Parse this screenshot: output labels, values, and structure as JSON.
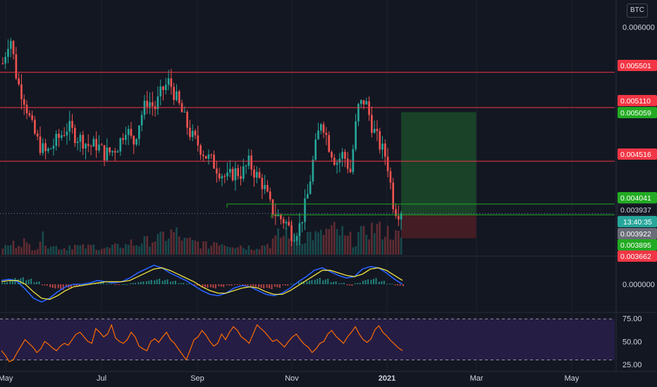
{
  "currency": "BTC",
  "colors": {
    "background": "#131722",
    "up": "#26a69a",
    "down": "#ef5350",
    "level_line": "#f23645",
    "green_line": "#22ab22",
    "blue": "#2962ff",
    "signal": "#f0e442",
    "rsi": "#ff6d00",
    "rsi_band": "#2a1f4a",
    "target_zone": "#1b4a2a",
    "stop_zone": "#4a1e25"
  },
  "chart_data": {
    "type": "candlestick",
    "x_ticks": [
      "May",
      "Jul",
      "Sep",
      "Nov",
      "2021",
      "Mar",
      "May"
    ],
    "price_axis": {
      "ticks": [
        {
          "value": 0.006,
          "label": "0.006000"
        }
      ],
      "ylim": [
        0.00348,
        0.00613
      ]
    },
    "levels": [
      {
        "value": 0.005501,
        "label": "0.005501",
        "kind": "resistance"
      },
      {
        "value": 0.00511,
        "label": "0.005110",
        "kind": "resistance"
      },
      {
        "value": 0.004516,
        "label": "0.004516",
        "kind": "resistance"
      },
      {
        "value": 0.004041,
        "label": "0.004041",
        "kind": "support"
      },
      {
        "value": 0.003922,
        "label": "0.003922",
        "kind": "support"
      }
    ],
    "price_tags": [
      {
        "label": "0.005501",
        "kind": "red"
      },
      {
        "label": "0.005110",
        "kind": "red"
      },
      {
        "label": "0.005059",
        "kind": "green"
      },
      {
        "label": "0.004516",
        "kind": "red"
      },
      {
        "label": "0.004041",
        "kind": "green"
      },
      {
        "label": "0.003937",
        "kind": "dark"
      },
      {
        "label": "13:40:35",
        "kind": "teal"
      },
      {
        "label": "0.003922",
        "kind": "gray"
      },
      {
        "label": "0.003895",
        "kind": "green"
      },
      {
        "label": "0.003662",
        "kind": "red-partial"
      }
    ],
    "last_price": 0.003937,
    "position": {
      "entry": 0.003922,
      "target": 0.005059,
      "stop": 0.003662,
      "take_profit_label": "0.005059",
      "stop_label": "0.003662"
    },
    "price_path": [
      0.0056,
      0.00592,
      0.0054,
      0.0052,
      0.0049,
      0.0047,
      0.0046,
      0.0047,
      0.0048,
      0.0049,
      0.0048,
      0.00475,
      0.00468,
      0.0047,
      0.0046,
      0.00462,
      0.0047,
      0.0049,
      0.0047,
      0.005,
      0.0052,
      0.0051,
      0.0053,
      0.0054,
      0.0052,
      0.005,
      0.0048,
      0.0047,
      0.00458,
      0.0045,
      0.0044,
      0.00432,
      0.0044,
      0.00438,
      0.0045,
      0.00436,
      0.00425,
      0.004,
      0.0039,
      0.00385,
      0.0037,
      0.0038,
      0.0041,
      0.0046,
      0.005,
      0.0047,
      0.0045,
      0.0046,
      0.0044,
      0.0051,
      0.0052,
      0.0049,
      0.0047,
      0.00455,
      0.004,
      0.003937
    ],
    "macd": {
      "axis_label": "0.000000",
      "histogram": [
        0.3,
        0.9,
        1.0,
        0.8,
        0.4,
        -0.2,
        -0.6,
        -0.8,
        -0.6,
        -0.3,
        0.0,
        0.2,
        0.3,
        0.1,
        -0.1,
        0.0,
        0.2,
        0.4,
        0.6,
        0.8,
        0.7,
        0.5,
        0.2,
        0.1,
        -0.2,
        -0.5,
        -0.6,
        -0.4,
        -0.2,
        -0.1,
        -0.2,
        -0.4,
        -0.6,
        -0.7,
        -0.5,
        -0.2,
        0.1,
        0.4,
        0.6,
        0.9,
        0.8,
        0.4,
        0.2,
        -0.2,
        0.2,
        0.7,
        0.9,
        0.5,
        0.1,
        -0.2,
        -0.4
      ],
      "macd_line": [
        0.3,
        0.4,
        0.2,
        -0.4,
        -1.1,
        -1.4,
        -1.1,
        -0.6,
        -0.2,
        0.0,
        0.0,
        0.1,
        0.3,
        0.2,
        0.1,
        0.2,
        0.5,
        0.9,
        1.2,
        1.5,
        1.3,
        0.9,
        0.6,
        0.3,
        -0.1,
        -0.5,
        -0.8,
        -0.9,
        -0.7,
        -0.3,
        -0.1,
        -0.2,
        -0.5,
        -0.8,
        -0.9,
        -0.7,
        -0.3,
        0.2,
        0.6,
        1.1,
        1.3,
        1.0,
        0.7,
        0.5,
        0.6,
        1.2,
        1.4,
        1.3,
        0.9,
        0.4,
        0.0
      ],
      "signal_line": [
        0.2,
        0.3,
        0.3,
        0.0,
        -0.6,
        -1.1,
        -1.2,
        -0.9,
        -0.5,
        -0.2,
        -0.1,
        0.0,
        0.1,
        0.2,
        0.2,
        0.2,
        0.3,
        0.6,
        0.9,
        1.2,
        1.3,
        1.1,
        0.8,
        0.5,
        0.2,
        -0.2,
        -0.5,
        -0.7,
        -0.7,
        -0.5,
        -0.3,
        -0.2,
        -0.3,
        -0.6,
        -0.8,
        -0.8,
        -0.5,
        -0.1,
        0.3,
        0.7,
        1.1,
        1.1,
        0.9,
        0.7,
        0.6,
        0.8,
        1.2,
        1.3,
        1.1,
        0.7,
        0.3
      ]
    },
    "rsi": {
      "ticks": [
        {
          "value": 75,
          "label": "75.00"
        },
        {
          "value": 50,
          "label": "50.00"
        },
        {
          "value": 25,
          "label": "25.00"
        }
      ],
      "ylim": [
        22,
        80
      ],
      "band": [
        30,
        70
      ],
      "values": [
        40,
        35,
        28,
        30,
        38,
        45,
        52,
        48,
        44,
        38,
        42,
        50,
        47,
        43,
        40,
        45,
        48,
        46,
        52,
        58,
        60,
        55,
        50,
        48,
        64,
        60,
        55,
        58,
        68,
        54,
        50,
        48,
        52,
        60,
        55,
        45,
        42,
        40,
        50,
        53,
        49,
        55,
        60,
        52,
        48,
        42,
        36,
        30,
        41,
        52,
        55,
        62,
        57,
        50,
        45,
        48,
        58,
        52,
        60,
        66,
        62,
        55,
        52,
        48,
        58,
        68,
        64,
        60,
        55,
        50,
        52,
        48,
        44,
        50,
        55,
        58,
        52,
        47,
        44,
        38,
        42,
        48,
        50,
        58,
        62,
        56,
        52,
        48,
        55,
        60,
        66,
        58,
        52,
        49,
        53,
        63,
        67,
        60,
        56,
        51,
        47,
        43,
        40
      ]
    },
    "volume": [
      0.3,
      0.4,
      0.5,
      0.35,
      0.3,
      0.6,
      0.4,
      0.3,
      0.25,
      0.35,
      0.3,
      0.28,
      0.32,
      0.26,
      0.24,
      0.3,
      0.35,
      0.45,
      0.4,
      0.5,
      0.55,
      0.6,
      0.7,
      0.8,
      0.65,
      0.5,
      0.45,
      0.4,
      0.35,
      0.5,
      0.45,
      0.4,
      0.35,
      0.3,
      0.28,
      0.32,
      0.4,
      0.55,
      0.7,
      0.9,
      0.8,
      0.65,
      0.75,
      0.7,
      0.85,
      0.9,
      0.8,
      0.6,
      0.5,
      0.75,
      0.95,
      1.0,
      0.9,
      0.85,
      0.7,
      0.5
    ]
  }
}
